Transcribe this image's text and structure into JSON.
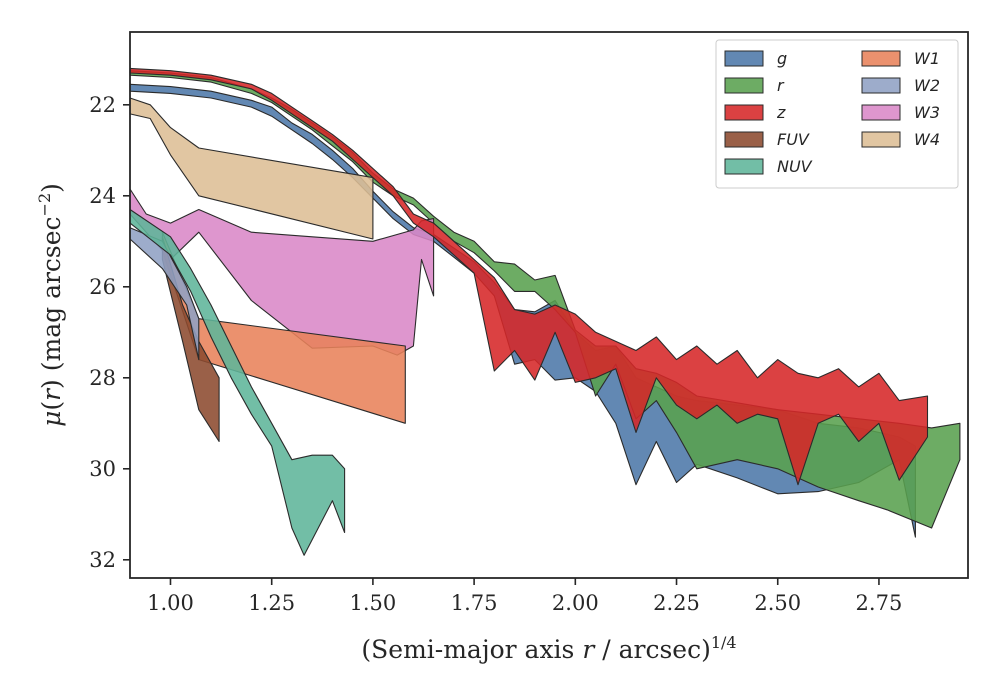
{
  "chart_data": {
    "type": "area",
    "title": "",
    "xlabel": {
      "main": "(Semi-major axis ",
      "var": "r",
      "rest": " / arcsec)",
      "sup": "1/4"
    },
    "ylabel": {
      "mu": "μ",
      "open": "(",
      "var": "r",
      "close": ")",
      "rest": " (mag arcsec",
      "sup": "−2",
      "end": ")"
    },
    "xlim": [
      0.9,
      2.97
    ],
    "ylim": [
      32.4,
      20.4
    ],
    "y_inverted": true,
    "xticks": [
      1.0,
      1.25,
      1.5,
      1.75,
      2.0,
      2.25,
      2.5,
      2.75
    ],
    "xtick_labels": [
      "1.00",
      "1.25",
      "1.50",
      "1.75",
      "2.00",
      "2.25",
      "2.50",
      "2.75"
    ],
    "yticks": [
      22,
      24,
      26,
      28,
      30,
      32
    ],
    "ytick_labels": [
      "22",
      "24",
      "26",
      "28",
      "30",
      "32"
    ],
    "grid": false,
    "legend": {
      "placement": "top-right",
      "columns": 2
    },
    "series": [
      {
        "name": "g",
        "color": "#4C78A8",
        "upper": [
          [
            0.9,
            21.55
          ],
          [
            1.0,
            21.6
          ],
          [
            1.1,
            21.7
          ],
          [
            1.2,
            21.9
          ],
          [
            1.25,
            22.05
          ],
          [
            1.3,
            22.4
          ],
          [
            1.35,
            22.65
          ],
          [
            1.4,
            23.0
          ],
          [
            1.45,
            23.4
          ],
          [
            1.5,
            23.9
          ],
          [
            1.55,
            24.35
          ],
          [
            1.6,
            24.7
          ],
          [
            1.65,
            24.85
          ],
          [
            1.7,
            25.15
          ],
          [
            1.75,
            25.45
          ],
          [
            1.8,
            25.9
          ],
          [
            1.85,
            26.5
          ],
          [
            1.9,
            26.55
          ],
          [
            1.95,
            26.3
          ],
          [
            2.0,
            27.0
          ],
          [
            2.05,
            27.4
          ],
          [
            2.1,
            27.3
          ],
          [
            2.15,
            28.0
          ],
          [
            2.2,
            28.2
          ],
          [
            2.25,
            28.4
          ],
          [
            2.3,
            28.5
          ],
          [
            2.4,
            28.6
          ],
          [
            2.5,
            28.7
          ],
          [
            2.6,
            29.0
          ],
          [
            2.7,
            29.1
          ],
          [
            2.8,
            29.3
          ],
          [
            2.84,
            29.5
          ]
        ],
        "lower": [
          [
            0.9,
            21.7
          ],
          [
            1.0,
            21.75
          ],
          [
            1.1,
            21.85
          ],
          [
            1.2,
            22.05
          ],
          [
            1.25,
            22.25
          ],
          [
            1.3,
            22.55
          ],
          [
            1.35,
            22.85
          ],
          [
            1.4,
            23.2
          ],
          [
            1.45,
            23.6
          ],
          [
            1.5,
            24.05
          ],
          [
            1.55,
            24.5
          ],
          [
            1.6,
            24.85
          ],
          [
            1.65,
            25.0
          ],
          [
            1.7,
            25.35
          ],
          [
            1.75,
            25.7
          ],
          [
            1.8,
            26.2
          ],
          [
            1.85,
            27.7
          ],
          [
            1.9,
            27.6
          ],
          [
            1.95,
            28.05
          ],
          [
            2.0,
            28.0
          ],
          [
            2.05,
            28.3
          ],
          [
            2.1,
            29.0
          ],
          [
            2.15,
            30.35
          ],
          [
            2.2,
            29.4
          ],
          [
            2.25,
            30.3
          ],
          [
            2.3,
            29.9
          ],
          [
            2.4,
            30.2
          ],
          [
            2.5,
            30.55
          ],
          [
            2.6,
            30.5
          ],
          [
            2.7,
            30.3
          ],
          [
            2.8,
            29.8
          ],
          [
            2.84,
            31.5
          ]
        ]
      },
      {
        "name": "r",
        "color": "#59A14F",
        "upper": [
          [
            0.9,
            21.25
          ],
          [
            1.0,
            21.3
          ],
          [
            1.1,
            21.4
          ],
          [
            1.2,
            21.65
          ],
          [
            1.25,
            21.85
          ],
          [
            1.3,
            22.1
          ],
          [
            1.35,
            22.4
          ],
          [
            1.4,
            22.7
          ],
          [
            1.45,
            23.05
          ],
          [
            1.5,
            23.5
          ],
          [
            1.55,
            23.85
          ],
          [
            1.6,
            24.05
          ],
          [
            1.65,
            24.45
          ],
          [
            1.7,
            24.8
          ],
          [
            1.75,
            25.0
          ],
          [
            1.8,
            25.45
          ],
          [
            1.85,
            25.5
          ],
          [
            1.9,
            25.85
          ],
          [
            1.95,
            25.75
          ],
          [
            2.0,
            26.95
          ],
          [
            2.05,
            27.3
          ],
          [
            2.1,
            27.3
          ],
          [
            2.15,
            27.8
          ],
          [
            2.2,
            27.9
          ],
          [
            2.25,
            28.1
          ],
          [
            2.3,
            28.4
          ],
          [
            2.4,
            28.55
          ],
          [
            2.5,
            28.7
          ],
          [
            2.6,
            28.8
          ],
          [
            2.7,
            28.9
          ],
          [
            2.8,
            29.0
          ],
          [
            2.88,
            29.1
          ],
          [
            2.95,
            29.0
          ]
        ],
        "lower": [
          [
            0.9,
            21.35
          ],
          [
            1.0,
            21.4
          ],
          [
            1.1,
            21.5
          ],
          [
            1.2,
            21.75
          ],
          [
            1.25,
            21.95
          ],
          [
            1.3,
            22.25
          ],
          [
            1.35,
            22.55
          ],
          [
            1.4,
            22.9
          ],
          [
            1.45,
            23.25
          ],
          [
            1.5,
            23.7
          ],
          [
            1.55,
            24.0
          ],
          [
            1.6,
            24.2
          ],
          [
            1.65,
            24.6
          ],
          [
            1.7,
            25.0
          ],
          [
            1.75,
            25.25
          ],
          [
            1.8,
            25.65
          ],
          [
            1.85,
            26.1
          ],
          [
            1.9,
            26.1
          ],
          [
            1.95,
            26.5
          ],
          [
            2.0,
            27.0
          ],
          [
            2.05,
            28.4
          ],
          [
            2.1,
            27.7
          ],
          [
            2.15,
            28.9
          ],
          [
            2.2,
            28.5
          ],
          [
            2.25,
            29.2
          ],
          [
            2.3,
            30.0
          ],
          [
            2.4,
            29.8
          ],
          [
            2.5,
            30.0
          ],
          [
            2.6,
            30.4
          ],
          [
            2.7,
            30.7
          ],
          [
            2.77,
            30.9
          ],
          [
            2.88,
            31.3
          ],
          [
            2.95,
            29.8
          ]
        ]
      },
      {
        "name": "z",
        "color": "#D62728",
        "upper": [
          [
            0.9,
            21.2
          ],
          [
            1.0,
            21.25
          ],
          [
            1.1,
            21.35
          ],
          [
            1.2,
            21.55
          ],
          [
            1.25,
            21.75
          ],
          [
            1.3,
            22.05
          ],
          [
            1.35,
            22.35
          ],
          [
            1.4,
            22.65
          ],
          [
            1.45,
            23.0
          ],
          [
            1.5,
            23.4
          ],
          [
            1.55,
            23.8
          ],
          [
            1.6,
            24.4
          ],
          [
            1.65,
            24.6
          ],
          [
            1.7,
            25.0
          ],
          [
            1.75,
            25.4
          ],
          [
            1.8,
            25.8
          ],
          [
            1.85,
            26.5
          ],
          [
            1.9,
            26.6
          ],
          [
            1.95,
            26.4
          ],
          [
            2.0,
            26.6
          ],
          [
            2.05,
            27.0
          ],
          [
            2.1,
            27.2
          ],
          [
            2.15,
            27.4
          ],
          [
            2.2,
            27.1
          ],
          [
            2.25,
            27.6
          ],
          [
            2.3,
            27.3
          ],
          [
            2.35,
            27.7
          ],
          [
            2.4,
            27.4
          ],
          [
            2.45,
            28.0
          ],
          [
            2.5,
            27.6
          ],
          [
            2.55,
            27.9
          ],
          [
            2.6,
            28.0
          ],
          [
            2.65,
            27.8
          ],
          [
            2.7,
            28.2
          ],
          [
            2.75,
            27.9
          ],
          [
            2.8,
            28.5
          ],
          [
            2.87,
            28.4
          ]
        ],
        "lower": [
          [
            0.9,
            21.3
          ],
          [
            1.0,
            21.35
          ],
          [
            1.1,
            21.45
          ],
          [
            1.2,
            21.65
          ],
          [
            1.25,
            21.9
          ],
          [
            1.3,
            22.2
          ],
          [
            1.35,
            22.5
          ],
          [
            1.4,
            22.8
          ],
          [
            1.45,
            23.2
          ],
          [
            1.5,
            23.6
          ],
          [
            1.55,
            24.0
          ],
          [
            1.6,
            24.6
          ],
          [
            1.65,
            24.9
          ],
          [
            1.7,
            25.3
          ],
          [
            1.75,
            25.7
          ],
          [
            1.8,
            27.85
          ],
          [
            1.85,
            27.4
          ],
          [
            1.9,
            28.05
          ],
          [
            1.95,
            27.0
          ],
          [
            2.0,
            28.1
          ],
          [
            2.05,
            28.0
          ],
          [
            2.1,
            27.8
          ],
          [
            2.15,
            29.2
          ],
          [
            2.2,
            28.0
          ],
          [
            2.25,
            28.6
          ],
          [
            2.3,
            28.9
          ],
          [
            2.35,
            28.6
          ],
          [
            2.4,
            29.0
          ],
          [
            2.45,
            28.8
          ],
          [
            2.5,
            28.9
          ],
          [
            2.55,
            30.35
          ],
          [
            2.6,
            29.0
          ],
          [
            2.65,
            28.8
          ],
          [
            2.7,
            29.4
          ],
          [
            2.75,
            29.0
          ],
          [
            2.8,
            30.25
          ],
          [
            2.87,
            29.3
          ]
        ]
      },
      {
        "name": "FUV",
        "color": "#8C4A2F",
        "upper": [
          [
            0.98,
            24.9
          ],
          [
            1.03,
            26.4
          ],
          [
            1.07,
            27.2
          ],
          [
            1.12,
            28.0
          ]
        ],
        "lower": [
          [
            0.98,
            25.4
          ],
          [
            1.03,
            27.2
          ],
          [
            1.07,
            28.7
          ],
          [
            1.12,
            29.4
          ]
        ]
      },
      {
        "name": "NUV",
        "color": "#5FB59A",
        "upper": [
          [
            0.9,
            24.3
          ],
          [
            1.0,
            24.9
          ],
          [
            1.05,
            25.6
          ],
          [
            1.1,
            26.4
          ],
          [
            1.15,
            27.3
          ],
          [
            1.2,
            28.2
          ],
          [
            1.25,
            29.0
          ],
          [
            1.3,
            29.8
          ],
          [
            1.35,
            29.7
          ],
          [
            1.4,
            29.7
          ],
          [
            1.43,
            30.0
          ]
        ],
        "lower": [
          [
            0.9,
            24.6
          ],
          [
            1.0,
            25.3
          ],
          [
            1.05,
            26.1
          ],
          [
            1.1,
            27.1
          ],
          [
            1.15,
            28.0
          ],
          [
            1.2,
            28.8
          ],
          [
            1.25,
            29.5
          ],
          [
            1.3,
            31.3
          ],
          [
            1.33,
            31.9
          ],
          [
            1.4,
            30.7
          ],
          [
            1.43,
            31.4
          ]
        ]
      },
      {
        "name": "W1",
        "color": "#E8825A",
        "upper": [
          [
            0.98,
            24.8
          ],
          [
            1.07,
            26.7
          ],
          [
            1.58,
            27.3
          ]
        ],
        "lower": [
          [
            0.98,
            25.2
          ],
          [
            1.07,
            27.6
          ],
          [
            1.58,
            29.0
          ]
        ]
      },
      {
        "name": "W2",
        "color": "#8FA0C4",
        "upper": [
          [
            0.9,
            24.7
          ],
          [
            0.98,
            25.0
          ],
          [
            1.04,
            26.0
          ],
          [
            1.07,
            26.7
          ]
        ],
        "lower": [
          [
            0.9,
            24.95
          ],
          [
            0.98,
            25.6
          ],
          [
            1.04,
            26.4
          ],
          [
            1.07,
            27.6
          ]
        ]
      },
      {
        "name": "W3",
        "color": "#D987C7",
        "upper": [
          [
            0.9,
            23.85
          ],
          [
            0.94,
            24.4
          ],
          [
            1.0,
            24.6
          ],
          [
            1.07,
            24.3
          ],
          [
            1.2,
            24.8
          ],
          [
            1.35,
            24.9
          ],
          [
            1.5,
            25.0
          ],
          [
            1.6,
            24.75
          ],
          [
            1.62,
            24.55
          ],
          [
            1.65,
            24.5
          ]
        ],
        "lower": [
          [
            0.9,
            24.4
          ],
          [
            0.94,
            24.8
          ],
          [
            1.0,
            25.4
          ],
          [
            1.07,
            24.8
          ],
          [
            1.2,
            26.3
          ],
          [
            1.35,
            27.35
          ],
          [
            1.5,
            27.3
          ],
          [
            1.56,
            27.5
          ],
          [
            1.6,
            27.3
          ],
          [
            1.62,
            25.4
          ],
          [
            1.65,
            26.2
          ]
        ]
      },
      {
        "name": "W4",
        "color": "#DDBE95",
        "upper": [
          [
            0.9,
            21.85
          ],
          [
            0.95,
            22.0
          ],
          [
            1.0,
            22.5
          ],
          [
            1.07,
            22.95
          ],
          [
            1.5,
            23.6
          ]
        ],
        "lower": [
          [
            0.9,
            22.2
          ],
          [
            0.95,
            22.3
          ],
          [
            1.0,
            23.1
          ],
          [
            1.07,
            24.0
          ],
          [
            1.5,
            24.95
          ]
        ]
      }
    ]
  }
}
